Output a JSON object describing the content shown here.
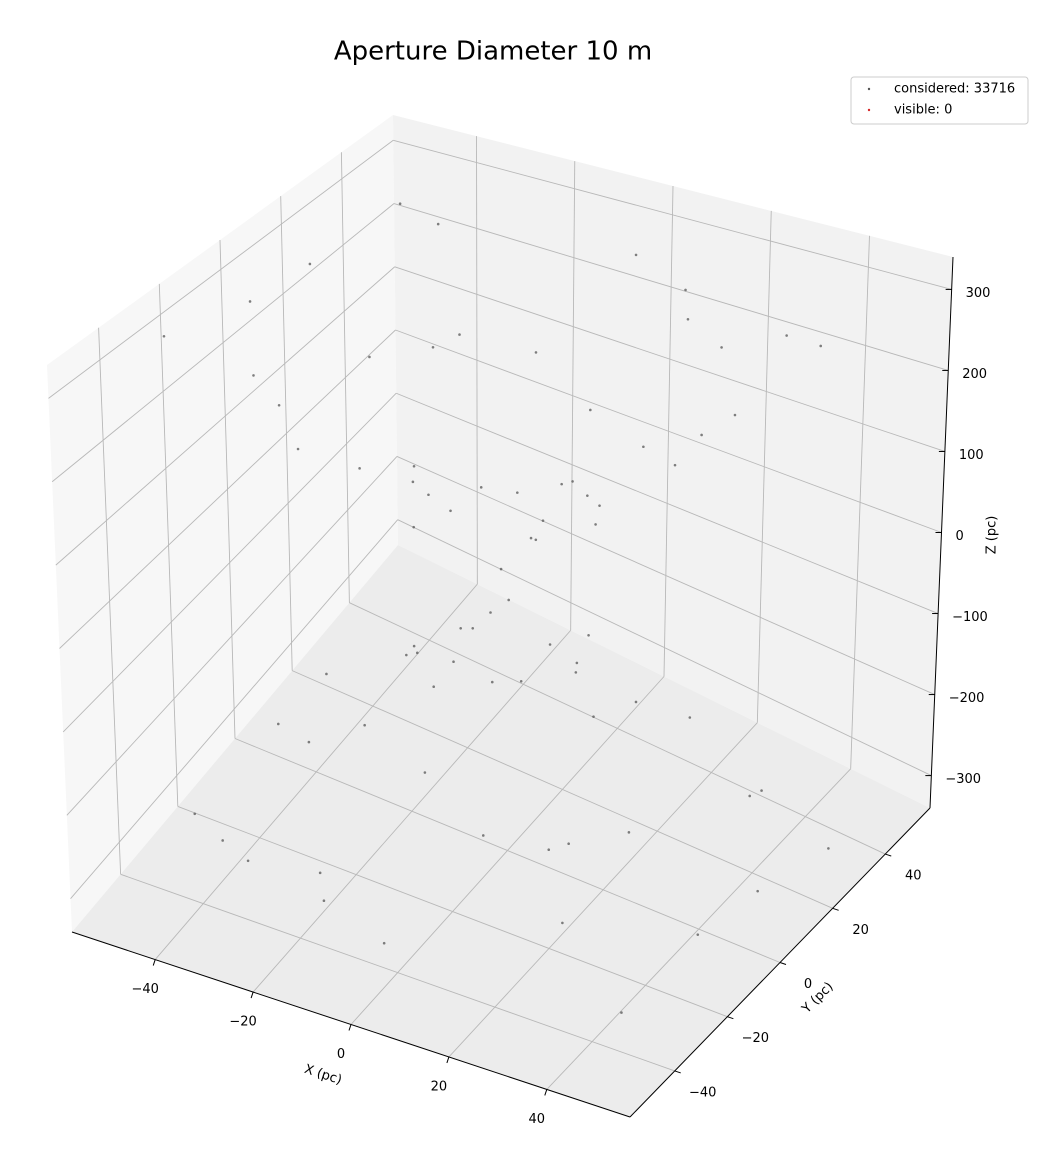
{
  "chart_data": {
    "type": "scatter3d",
    "title": "Aperture Diameter 10 m",
    "xlabel": "X (pc)",
    "ylabel": "Y (pc)",
    "zlabel": "Z (pc)",
    "xlim": [
      -57,
      57
    ],
    "ylim": [
      -57,
      57
    ],
    "zlim": [
      -340,
      340
    ],
    "xticks": [
      {
        "value": -40,
        "label": "−40"
      },
      {
        "value": -20,
        "label": "−20"
      },
      0,
      20,
      40
    ],
    "yticks": [
      {
        "value": -40,
        "label": "−40"
      },
      {
        "value": -20,
        "label": "−20"
      },
      0,
      20,
      40
    ],
    "zticks": [
      {
        "value": -300,
        "label": "−300"
      },
      {
        "value": -200,
        "label": "−200"
      },
      {
        "value": -100,
        "label": "−100"
      },
      0,
      100,
      200,
      300
    ],
    "grid": true,
    "legend": "upper right",
    "series": [
      {
        "name": "considered: 33716",
        "color": "#555555",
        "x": [
          5,
          -8,
          12,
          -15,
          20,
          -25,
          30,
          -35,
          40,
          -42,
          2,
          -3,
          18,
          -20,
          25,
          -10,
          8,
          35,
          -30,
          15,
          -18,
          45,
          -45,
          0,
          10,
          50,
          -50,
          28,
          -28,
          6,
          -14,
          22,
          -6,
          33,
          -33,
          48,
          -48,
          3,
          -22,
          12,
          -4,
          7,
          -12,
          16,
          -21,
          24,
          -31,
          36,
          -41,
          44,
          -2,
          4,
          -17,
          19,
          -26,
          11,
          -9,
          -34,
          29,
          -16,
          17,
          -46,
          46,
          1,
          -11,
          -51,
          51,
          -27,
          27,
          -7,
          13,
          -23,
          5,
          -34,
          34,
          -49,
          49,
          -2,
          21,
          -13
        ],
        "y": [
          3,
          6,
          -10,
          -5,
          15,
          18,
          -20,
          -25,
          30,
          35,
          -4,
          10,
          2,
          -15,
          -8,
          28,
          -30,
          10,
          5,
          38,
          -38,
          -15,
          10,
          45,
          -45,
          25,
          -30,
          28,
          -28,
          14,
          -2,
          -22,
          -20,
          -33,
          33,
          0,
          -5,
          25,
          22,
          42,
          2,
          -6,
          9,
          4,
          -14,
          -19,
          21,
          26,
          -31,
          -36,
          5,
          -11,
          -3,
          14,
          9,
          -27,
          31,
          -12,
          -6,
          -39,
          37,
          14,
          -11,
          -46,
          44,
          -24,
          29,
          27,
          -27,
          -13,
          3,
          23,
          21,
          -34,
          34,
          2,
          6,
          -25,
          -21,
          -43
        ],
        "z": [
          60,
          90,
          120,
          140,
          170,
          200,
          240,
          280,
          300,
          310,
          40,
          80,
          110,
          160,
          180,
          190,
          210,
          230,
          220,
          250,
          260,
          290,
          300,
          285,
          295,
          320,
          315,
          270,
          265,
          100,
          95,
          200,
          130,
          300,
          305,
          310,
          290,
          150,
          210,
          270,
          -50,
          -85,
          -115,
          -145,
          -175,
          -205,
          -245,
          -275,
          -300,
          -310,
          -40,
          -75,
          -105,
          -155,
          -185,
          -195,
          -215,
          -235,
          -225,
          -255,
          -265,
          -285,
          -295,
          -280,
          -300,
          -318,
          -312,
          -272,
          -268,
          -98,
          -92,
          -198,
          -128,
          -298,
          -302,
          -308,
          -292,
          -152,
          -212,
          -268
        ]
      },
      {
        "name": "visible: 0",
        "color": "#d62728",
        "x": [],
        "y": [],
        "z": []
      }
    ]
  }
}
